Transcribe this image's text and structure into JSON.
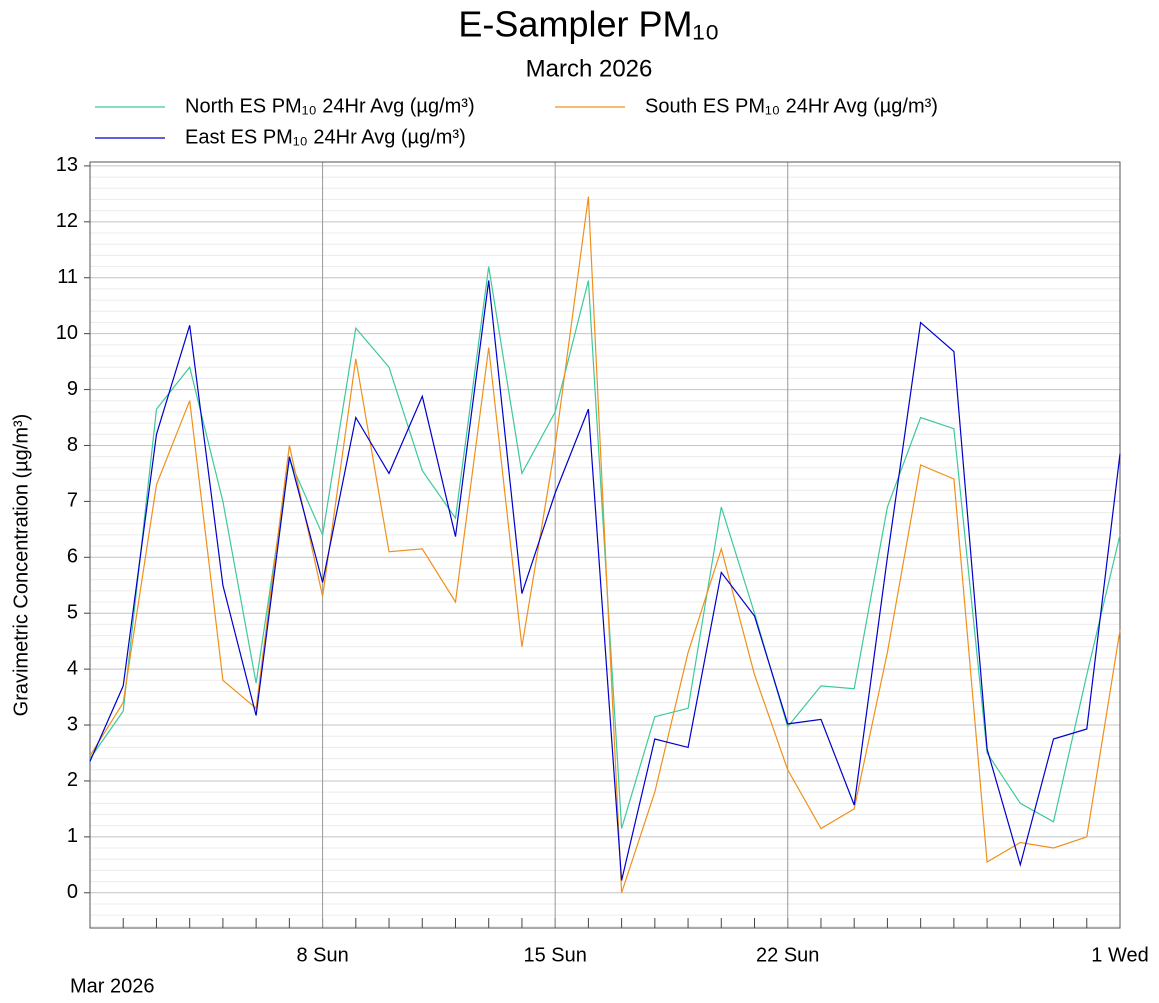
{
  "chart_data": {
    "type": "line",
    "title": "E-Sampler PM₁₀",
    "subtitle": "March 2026",
    "y_label": "Gravimetric Concentration (µg/m³)",
    "x_period_label": "Mar 2026",
    "x": [
      "2026-03-01",
      "2026-03-02",
      "2026-03-03",
      "2026-03-04",
      "2026-03-05",
      "2026-03-06",
      "2026-03-07",
      "2026-03-08",
      "2026-03-09",
      "2026-03-10",
      "2026-03-11",
      "2026-03-12",
      "2026-03-13",
      "2026-03-14",
      "2026-03-15",
      "2026-03-16",
      "2026-03-17",
      "2026-03-18",
      "2026-03-19",
      "2026-03-20",
      "2026-03-21",
      "2026-03-22",
      "2026-03-23",
      "2026-03-24",
      "2026-03-25",
      "2026-03-26",
      "2026-03-27",
      "2026-03-28",
      "2026-03-29",
      "2026-03-30",
      "2026-03-31",
      "2026-04-01"
    ],
    "xlim": [
      "2026-03-01",
      "2026-04-01"
    ],
    "xticks": [
      {
        "value": "2026-03-08",
        "label": "8 Sun"
      },
      {
        "value": "2026-03-15",
        "label": "15 Sun"
      },
      {
        "value": "2026-03-22",
        "label": "22 Sun"
      },
      {
        "value": "2026-04-01",
        "label": "1 Wed"
      }
    ],
    "ylim": [
      -0.63,
      13.07
    ],
    "yticks": [
      0,
      1,
      2,
      3,
      4,
      5,
      6,
      7,
      8,
      9,
      10,
      11,
      12,
      13
    ],
    "grid": true,
    "series": [
      {
        "name": "North ES PM₁₀ 24Hr Avg (µg/m³)",
        "color": "#3ec99a",
        "values": [
          2.4,
          3.25,
          8.65,
          9.4,
          7.0,
          3.75,
          7.75,
          6.4,
          10.1,
          9.4,
          7.55,
          6.7,
          11.2,
          7.5,
          8.6,
          10.95,
          1.15,
          3.15,
          3.3,
          6.9,
          5.0,
          2.97,
          3.7,
          3.65,
          6.9,
          8.5,
          8.3,
          2.5,
          1.6,
          1.27,
          3.9,
          6.4
        ]
      },
      {
        "name": "South ES PM₁₀ 24Hr Avg (µg/m³)",
        "color": "#f0901c",
        "values": [
          2.45,
          3.4,
          7.3,
          8.8,
          3.8,
          3.3,
          8.0,
          5.3,
          9.55,
          6.1,
          6.15,
          5.2,
          9.75,
          4.4,
          8.0,
          12.45,
          0.0,
          1.8,
          4.3,
          6.15,
          3.9,
          2.2,
          1.15,
          1.5,
          4.3,
          7.65,
          7.4,
          0.55,
          0.9,
          0.8,
          1.0,
          4.7
        ]
      },
      {
        "name": "East ES PM₁₀ 24Hr Avg (µg/m³)",
        "color": "#0000cc",
        "values": [
          2.35,
          3.7,
          8.2,
          10.15,
          5.5,
          3.17,
          7.8,
          5.55,
          8.5,
          7.5,
          8.88,
          6.37,
          10.95,
          5.35,
          7.15,
          8.65,
          0.22,
          2.75,
          2.6,
          5.73,
          4.95,
          3.02,
          3.1,
          1.57,
          6.0,
          10.2,
          9.68,
          2.57,
          0.5,
          2.75,
          2.93,
          7.85
        ]
      }
    ]
  }
}
